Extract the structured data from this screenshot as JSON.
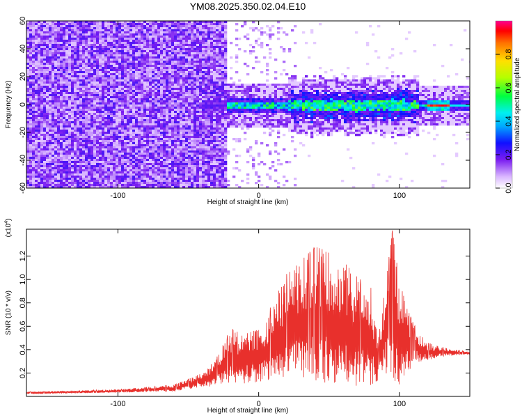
{
  "chart_data": [
    {
      "type": "heatmap",
      "title": "YM08.2025.350.02.04.E10",
      "xlabel": "Height of straight line (km)",
      "ylabel": "Frequency (Hz)",
      "xlim": [
        -165,
        150
      ],
      "ylim": [
        -60,
        60
      ],
      "x_ticks": [
        -100,
        0,
        100
      ],
      "y_ticks": [
        60,
        40,
        20,
        0,
        -20,
        -40,
        -60
      ],
      "colorbar": {
        "label": "Normalized spectral amplitude",
        "range": [
          0,
          1
        ],
        "ticks": [
          0.0,
          0.2,
          0.4,
          0.6,
          0.8
        ]
      },
      "features": {
        "noise_region_km": [
          -165,
          -23
        ],
        "signal_band_km": [
          -45,
          150
        ],
        "signal_band_freq_hz": [
          -8,
          8
        ],
        "peak_amplitude_km": [
          118,
          132
        ],
        "peak_amplitude": 1.0
      }
    },
    {
      "type": "area",
      "xlabel": "Height of straight line (km)",
      "ylabel": "SNR (10 * v/v)",
      "multiplier_label": "(x10",
      "multiplier_exp": "4",
      "xlim": [
        -165,
        150
      ],
      "ylim": [
        0,
        1.43
      ],
      "x_ticks": [
        -100,
        0,
        100
      ],
      "y_ticks": [
        0.2,
        0.4,
        0.6,
        0.8,
        1.0,
        1.2
      ],
      "color": "#e8302c",
      "envelope": {
        "x": [
          -165,
          -100,
          -60,
          -40,
          -30,
          -20,
          -10,
          0,
          10,
          20,
          30,
          40,
          50,
          60,
          70,
          80,
          85,
          90,
          95,
          100,
          105,
          110,
          120,
          130,
          150
        ],
        "y": [
          0.04,
          0.06,
          0.1,
          0.2,
          0.33,
          0.58,
          0.55,
          0.57,
          0.8,
          1.05,
          1.16,
          1.28,
          1.24,
          1.17,
          1.02,
          0.93,
          0.48,
          0.95,
          1.42,
          0.98,
          0.78,
          0.62,
          0.46,
          0.42,
          0.38
        ]
      },
      "baseline": {
        "x": [
          -165,
          -60,
          -40,
          -20,
          0,
          20,
          40,
          60,
          80,
          90,
          100,
          110,
          130,
          150
        ],
        "y": [
          0.02,
          0.04,
          0.08,
          0.1,
          0.12,
          0.15,
          0.12,
          0.1,
          0.08,
          0.2,
          0.08,
          0.28,
          0.34,
          0.36
        ]
      }
    }
  ]
}
